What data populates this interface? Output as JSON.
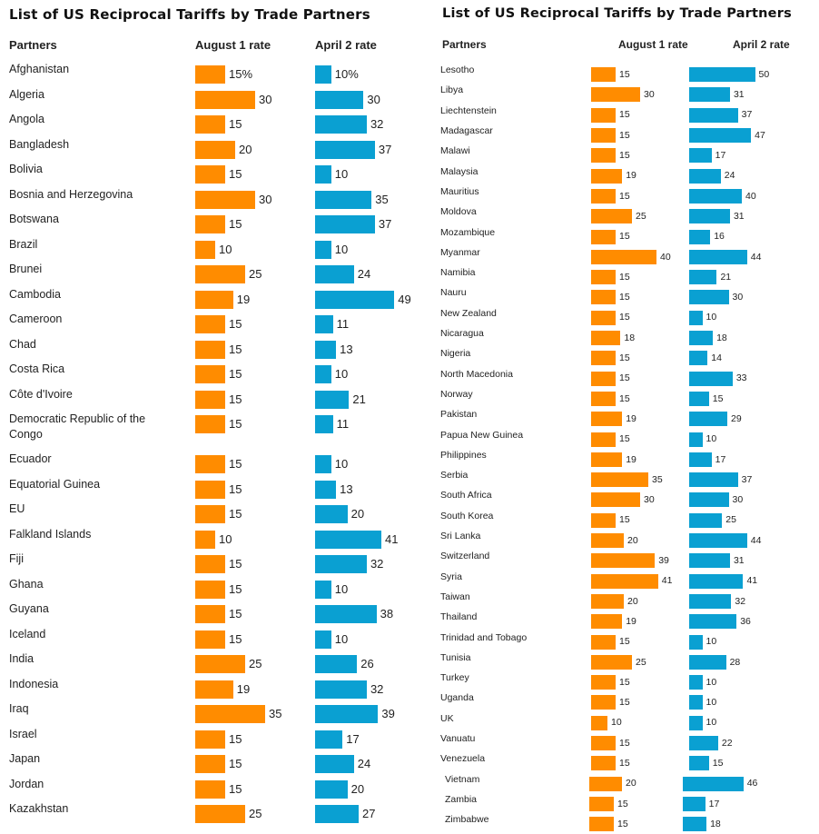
{
  "colors": {
    "august": "#ff8c00",
    "april": "#0aa0d2"
  },
  "first_row_suffix": "%",
  "chart_data": [
    {
      "type": "bar",
      "title": "List of US Reciprocal Tariffs by Trade Partners",
      "headers": {
        "partners": "Partners",
        "august": "August 1 rate",
        "april": "April 2 rate"
      },
      "series_names": [
        "August 1 rate",
        "April 2 rate"
      ],
      "unit": "%",
      "rows": [
        [
          "Afghanistan",
          15,
          10
        ],
        [
          "Algeria",
          30,
          30
        ],
        [
          "Angola",
          15,
          32
        ],
        [
          "Bangladesh",
          20,
          37
        ],
        [
          "Bolivia",
          15,
          10
        ],
        [
          "Bosnia and Herzegovina",
          30,
          35
        ],
        [
          "Botswana",
          15,
          37
        ],
        [
          "Brazil",
          10,
          10
        ],
        [
          "Brunei",
          25,
          24
        ],
        [
          "Cambodia",
          19,
          49
        ],
        [
          "Cameroon",
          15,
          11
        ],
        [
          "Chad",
          15,
          13
        ],
        [
          "Costa Rica",
          15,
          10
        ],
        [
          "Côte d'Ivoire",
          15,
          21
        ],
        [
          "Democratic Republic of the Congo",
          15,
          11
        ],
        [
          "Ecuador",
          15,
          10
        ],
        [
          "Equatorial Guinea",
          15,
          13
        ],
        [
          "EU",
          15,
          20
        ],
        [
          "Falkland Islands",
          10,
          41
        ],
        [
          "Fiji",
          15,
          32
        ],
        [
          "Ghana",
          15,
          10
        ],
        [
          "Guyana",
          15,
          38
        ],
        [
          "Iceland",
          15,
          10
        ],
        [
          "India",
          25,
          26
        ],
        [
          "Indonesia",
          19,
          32
        ],
        [
          "Iraq",
          35,
          39
        ],
        [
          "Israel",
          15,
          17
        ],
        [
          "Japan",
          15,
          24
        ],
        [
          "Jordan",
          15,
          20
        ],
        [
          "Kazakhstan",
          25,
          27
        ]
      ]
    },
    {
      "type": "bar",
      "title": "List of US Reciprocal Tariffs by Trade Partners",
      "headers": {
        "partners": "Partners",
        "august": "August 1 rate",
        "april": "April 2 rate"
      },
      "series_names": [
        "August 1 rate",
        "April 2 rate"
      ],
      "unit": "%",
      "rows": [
        [
          "Lesotho",
          15,
          50
        ],
        [
          "Libya",
          30,
          31
        ],
        [
          "Liechtenstein",
          15,
          37
        ],
        [
          "Madagascar",
          15,
          47
        ],
        [
          "Malawi",
          15,
          17
        ],
        [
          "Malaysia",
          19,
          24
        ],
        [
          "Mauritius",
          15,
          40
        ],
        [
          "Moldova",
          25,
          31
        ],
        [
          "Mozambique",
          15,
          16
        ],
        [
          "Myanmar",
          40,
          44
        ],
        [
          "Namibia",
          15,
          21
        ],
        [
          "Nauru",
          15,
          30
        ],
        [
          "New Zealand",
          15,
          10
        ],
        [
          "Nicaragua",
          18,
          18
        ],
        [
          "Nigeria",
          15,
          14
        ],
        [
          "North Macedonia",
          15,
          33
        ],
        [
          "Norway",
          15,
          15
        ],
        [
          "Pakistan",
          19,
          29
        ],
        [
          "Papua New Guinea",
          15,
          10
        ],
        [
          "Philippines",
          19,
          17
        ],
        [
          "Serbia",
          35,
          37
        ],
        [
          "South Africa",
          30,
          30
        ],
        [
          "South Korea",
          15,
          25
        ],
        [
          "Sri Lanka",
          20,
          44
        ],
        [
          "Switzerland",
          39,
          31
        ],
        [
          "Syria",
          41,
          41
        ],
        [
          "Taiwan",
          20,
          32
        ],
        [
          "Thailand",
          19,
          36
        ],
        [
          "Trinidad and Tobago",
          15,
          10
        ],
        [
          "Tunisia",
          25,
          28
        ],
        [
          "Turkey",
          15,
          10
        ],
        [
          "Uganda",
          15,
          10
        ],
        [
          "UK",
          10,
          10
        ],
        [
          "Vanuatu",
          15,
          22
        ],
        [
          "Venezuela",
          15,
          15
        ],
        [
          "Vietnam",
          20,
          46
        ],
        [
          "Zambia",
          15,
          17
        ],
        [
          "Zimbabwe",
          15,
          18
        ]
      ]
    }
  ]
}
